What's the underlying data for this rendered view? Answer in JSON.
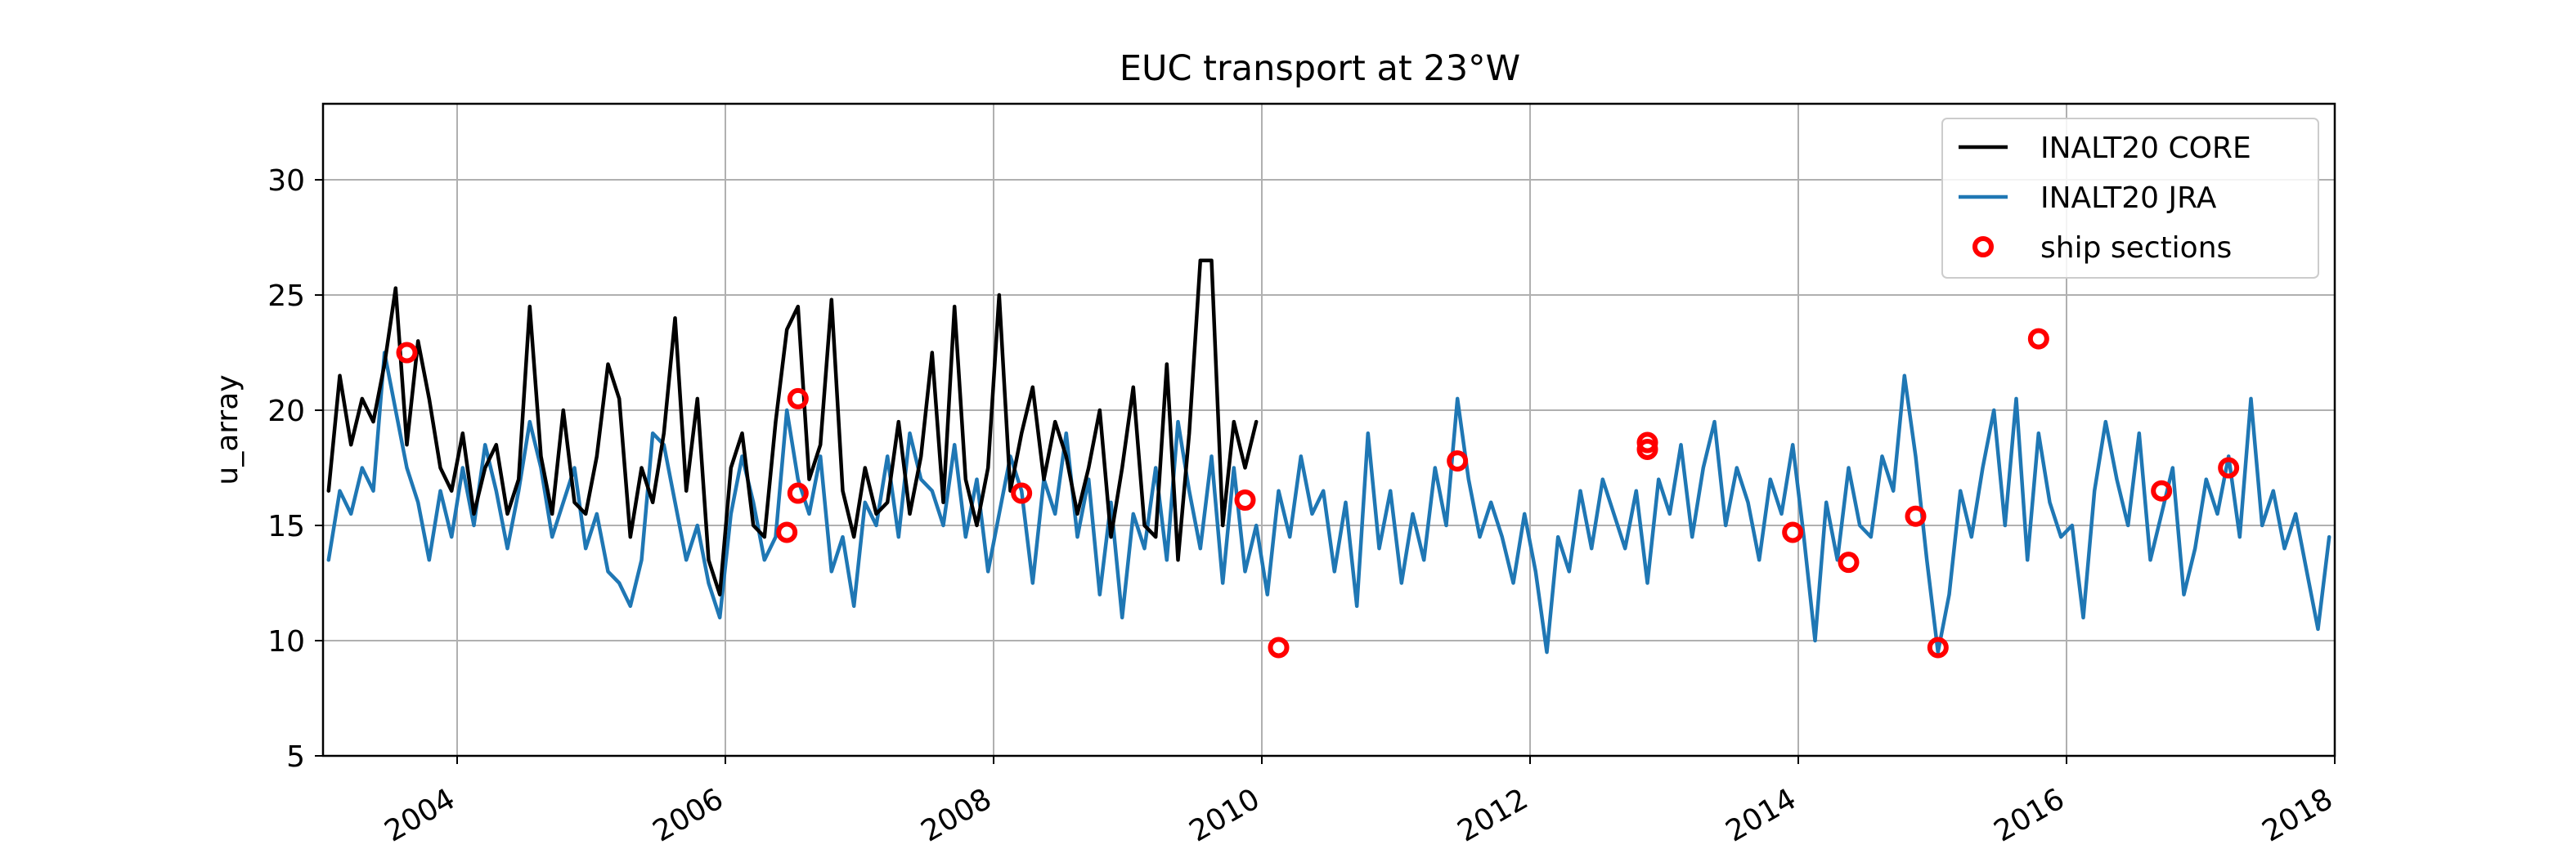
{
  "chart_data": {
    "type": "line",
    "title": "EUC transport at 23°W",
    "xlabel": "",
    "ylabel": "u_array",
    "xlim": [
      "2003-01-01",
      "2018-01-01"
    ],
    "ylim": [
      5,
      33.3
    ],
    "x_ticks": [
      "2004",
      "2006",
      "2008",
      "2010",
      "2012",
      "2014",
      "2016",
      "2018"
    ],
    "y_ticks": [
      5,
      10,
      15,
      20,
      25,
      30
    ],
    "grid": true,
    "legend_position": "top-right",
    "series": [
      {
        "name": "INALT20 CORE",
        "style": "line",
        "color": "#000000",
        "x": [
          "2003-01",
          "2003-02",
          "2003-03",
          "2003-04",
          "2003-05",
          "2003-06",
          "2003-07",
          "2003-08",
          "2003-09",
          "2003-10",
          "2003-11",
          "2003-12",
          "2004-01",
          "2004-02",
          "2004-03",
          "2004-04",
          "2004-05",
          "2004-06",
          "2004-07",
          "2004-08",
          "2004-09",
          "2004-10",
          "2004-11",
          "2004-12",
          "2005-01",
          "2005-02",
          "2005-03",
          "2005-04",
          "2005-05",
          "2005-06",
          "2005-07",
          "2005-08",
          "2005-09",
          "2005-10",
          "2005-11",
          "2005-12",
          "2006-01",
          "2006-02",
          "2006-03",
          "2006-04",
          "2006-05",
          "2006-06",
          "2006-07",
          "2006-08",
          "2006-09",
          "2006-10",
          "2006-11",
          "2006-12",
          "2007-01",
          "2007-02",
          "2007-03",
          "2007-04",
          "2007-05",
          "2007-06",
          "2007-07",
          "2007-08",
          "2007-09",
          "2007-10",
          "2007-11",
          "2007-12",
          "2008-01",
          "2008-02",
          "2008-03",
          "2008-04",
          "2008-05",
          "2008-06",
          "2008-07",
          "2008-08",
          "2008-09",
          "2008-10",
          "2008-11",
          "2008-12",
          "2009-01",
          "2009-02",
          "2009-03",
          "2009-04",
          "2009-05",
          "2009-06",
          "2009-07",
          "2009-08",
          "2009-09",
          "2009-10",
          "2009-11",
          "2009-12"
        ],
        "values": [
          16.5,
          21.5,
          18.5,
          20.5,
          19.5,
          22.0,
          25.3,
          18.5,
          23.0,
          20.5,
          17.5,
          16.5,
          19.0,
          15.5,
          17.5,
          18.5,
          15.5,
          17.0,
          24.5,
          18.0,
          15.5,
          20.0,
          16.0,
          15.5,
          18.0,
          22.0,
          20.5,
          14.5,
          17.5,
          16.0,
          19.0,
          24.0,
          16.5,
          20.5,
          13.5,
          12.0,
          17.5,
          19.0,
          15.0,
          14.5,
          19.5,
          23.5,
          24.5,
          17.0,
          18.5,
          24.8,
          16.5,
          14.5,
          17.5,
          15.5,
          16.0,
          19.5,
          15.5,
          18.0,
          22.5,
          16.0,
          24.5,
          17.0,
          15.0,
          17.5,
          25.0,
          16.5,
          19.0,
          21.0,
          17.0,
          19.5,
          18.0,
          15.5,
          17.5,
          20.0,
          14.5,
          17.5,
          21.0,
          15.0,
          14.5,
          22.0,
          13.5,
          19.0,
          26.5,
          26.5,
          15.0,
          19.5,
          17.5,
          19.5
        ]
      },
      {
        "name": "INALT20 JRA",
        "style": "line",
        "color": "#1f77b4",
        "x": [
          "2003-01",
          "2003-02",
          "2003-03",
          "2003-04",
          "2003-05",
          "2003-06",
          "2003-07",
          "2003-08",
          "2003-09",
          "2003-10",
          "2003-11",
          "2003-12",
          "2004-01",
          "2004-02",
          "2004-03",
          "2004-04",
          "2004-05",
          "2004-06",
          "2004-07",
          "2004-08",
          "2004-09",
          "2004-10",
          "2004-11",
          "2004-12",
          "2005-01",
          "2005-02",
          "2005-03",
          "2005-04",
          "2005-05",
          "2005-06",
          "2005-07",
          "2005-08",
          "2005-09",
          "2005-10",
          "2005-11",
          "2005-12",
          "2006-01",
          "2006-02",
          "2006-03",
          "2006-04",
          "2006-05",
          "2006-06",
          "2006-07",
          "2006-08",
          "2006-09",
          "2006-10",
          "2006-11",
          "2006-12",
          "2007-01",
          "2007-02",
          "2007-03",
          "2007-04",
          "2007-05",
          "2007-06",
          "2007-07",
          "2007-08",
          "2007-09",
          "2007-10",
          "2007-11",
          "2007-12",
          "2008-01",
          "2008-02",
          "2008-03",
          "2008-04",
          "2008-05",
          "2008-06",
          "2008-07",
          "2008-08",
          "2008-09",
          "2008-10",
          "2008-11",
          "2008-12",
          "2009-01",
          "2009-02",
          "2009-03",
          "2009-04",
          "2009-05",
          "2009-06",
          "2009-07",
          "2009-08",
          "2009-09",
          "2009-10",
          "2009-11",
          "2009-12",
          "2010-01",
          "2010-02",
          "2010-03",
          "2010-04",
          "2010-05",
          "2010-06",
          "2010-07",
          "2010-08",
          "2010-09",
          "2010-10",
          "2010-11",
          "2010-12",
          "2011-01",
          "2011-02",
          "2011-03",
          "2011-04",
          "2011-05",
          "2011-06",
          "2011-07",
          "2011-08",
          "2011-09",
          "2011-10",
          "2011-11",
          "2011-12",
          "2012-01",
          "2012-02",
          "2012-03",
          "2012-04",
          "2012-05",
          "2012-06",
          "2012-07",
          "2012-08",
          "2012-09",
          "2012-10",
          "2012-11",
          "2012-12",
          "2013-01",
          "2013-02",
          "2013-03",
          "2013-04",
          "2013-05",
          "2013-06",
          "2013-07",
          "2013-08",
          "2013-09",
          "2013-10",
          "2013-11",
          "2013-12",
          "2014-01",
          "2014-02",
          "2014-03",
          "2014-04",
          "2014-05",
          "2014-06",
          "2014-07",
          "2014-08",
          "2014-09",
          "2014-10",
          "2014-11",
          "2014-12",
          "2015-01",
          "2015-02",
          "2015-03",
          "2015-04",
          "2015-05",
          "2015-06",
          "2015-07",
          "2015-08",
          "2015-09",
          "2015-10",
          "2015-11",
          "2015-12",
          "2016-01",
          "2016-02",
          "2016-03",
          "2016-04",
          "2016-05",
          "2016-06",
          "2016-07",
          "2016-08",
          "2016-09",
          "2016-10",
          "2016-11",
          "2016-12",
          "2017-01",
          "2017-02",
          "2017-03",
          "2017-04",
          "2017-05",
          "2017-06",
          "2017-07",
          "2017-08",
          "2017-09",
          "2017-10",
          "2017-11",
          "2017-12"
        ],
        "values": [
          13.5,
          16.5,
          15.5,
          17.5,
          16.5,
          22.5,
          20.0,
          17.5,
          16.0,
          13.5,
          16.5,
          14.5,
          17.5,
          15.0,
          18.5,
          16.5,
          14.0,
          16.5,
          19.5,
          17.5,
          14.5,
          16.0,
          17.5,
          14.0,
          15.5,
          13.0,
          12.5,
          11.5,
          13.5,
          19.0,
          18.5,
          16.0,
          13.5,
          15.0,
          12.5,
          11.0,
          15.5,
          18.0,
          16.0,
          13.5,
          14.5,
          20.0,
          17.0,
          15.5,
          18.0,
          13.0,
          14.5,
          11.5,
          16.0,
          15.0,
          18.0,
          14.5,
          19.0,
          17.0,
          16.5,
          15.0,
          18.5,
          14.5,
          17.0,
          13.0,
          15.5,
          18.0,
          16.5,
          12.5,
          17.0,
          15.5,
          19.0,
          14.5,
          17.0,
          12.0,
          16.0,
          11.0,
          15.5,
          14.0,
          17.5,
          13.5,
          19.5,
          16.5,
          14.0,
          18.0,
          12.5,
          17.5,
          13.0,
          15.0,
          12.0,
          16.5,
          14.5,
          18.0,
          15.5,
          16.5,
          13.0,
          16.0,
          11.5,
          19.0,
          14.0,
          16.5,
          12.5,
          15.5,
          13.5,
          17.5,
          15.0,
          20.5,
          17.0,
          14.5,
          16.0,
          14.5,
          12.5,
          15.5,
          13.0,
          9.5,
          14.5,
          13.0,
          16.5,
          14.0,
          17.0,
          15.5,
          14.0,
          16.5,
          12.5,
          17.0,
          15.5,
          18.5,
          14.5,
          17.5,
          19.5,
          15.0,
          17.5,
          16.0,
          13.5,
          17.0,
          15.5,
          18.5,
          14.5,
          10.0,
          16.0,
          13.5,
          17.5,
          15.0,
          14.5,
          18.0,
          16.5,
          21.5,
          18.0,
          13.5,
          9.5,
          12.0,
          16.5,
          14.5,
          17.5,
          20.0,
          15.0,
          20.5,
          13.5,
          19.0,
          16.0,
          14.5,
          15.0,
          11.0,
          16.5,
          19.5,
          17.0,
          15.0,
          19.0,
          13.5,
          15.5,
          17.5,
          12.0,
          14.0,
          17.0,
          15.5,
          18.0,
          14.5,
          20.5,
          15.0,
          16.5,
          14.0,
          15.5,
          13.0,
          10.5,
          14.5
        ]
      },
      {
        "name": "ship sections",
        "style": "scatter",
        "color": "#ff0000",
        "x": [
          "2003-08",
          "2006-06",
          "2006-07",
          "2006-07",
          "2008-03",
          "2009-11",
          "2010-02",
          "2011-06",
          "2012-11",
          "2012-11",
          "2013-12",
          "2014-05",
          "2014-11",
          "2015-01",
          "2015-10",
          "2016-09",
          "2017-03"
        ],
        "values": [
          22.5,
          14.7,
          20.5,
          16.4,
          16.4,
          16.1,
          9.7,
          17.8,
          18.6,
          18.3,
          14.7,
          13.4,
          15.4,
          9.7,
          23.1,
          16.5,
          17.5
        ]
      }
    ]
  }
}
